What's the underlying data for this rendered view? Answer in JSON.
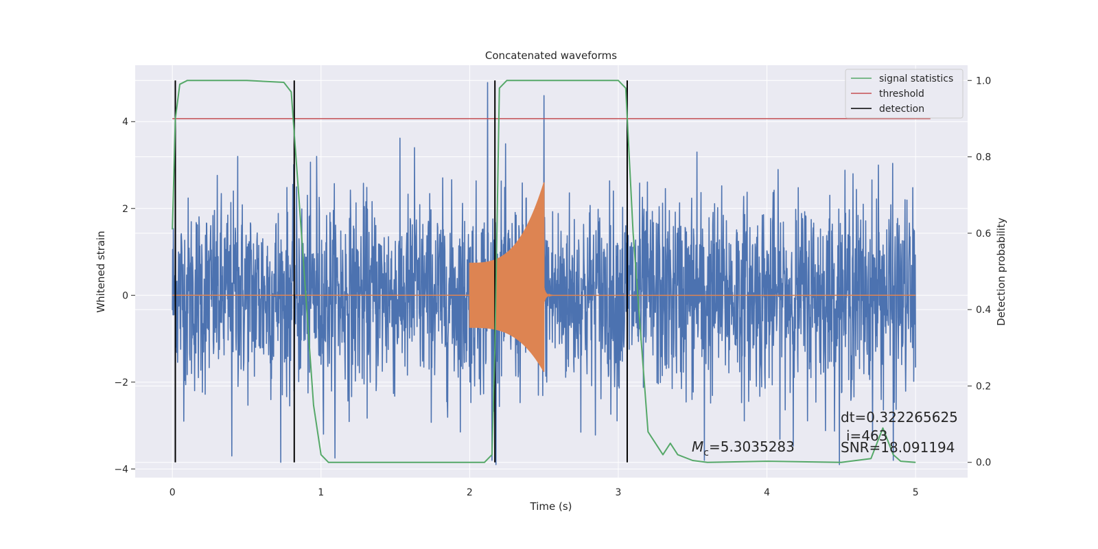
{
  "chart_data": {
    "type": "line",
    "title": "Concatenated waveforms",
    "xlabel": "Time (s)",
    "ylabel": "Whitened strain",
    "y2label": "Detection probability",
    "xlim": [
      -0.25,
      5.35
    ],
    "ylim": [
      -4.2,
      5.3
    ],
    "y2lim": [
      -0.04,
      1.04
    ],
    "xticks": [
      "0",
      "1",
      "2",
      "3",
      "4",
      "5"
    ],
    "yticks": [
      "−4",
      "−2",
      "0",
      "2",
      "4"
    ],
    "y2ticks": [
      "0.0",
      "0.2",
      "0.4",
      "0.6",
      "0.8",
      "1.0"
    ],
    "grid": true,
    "legend_position": "top-right",
    "legend": [
      {
        "label": "signal statistics",
        "color": "#55a868"
      },
      {
        "label": "threshold",
        "color": "#c44e52"
      },
      {
        "label": "detection",
        "color": "#000000"
      }
    ],
    "series": [
      {
        "name": "whitened strain",
        "color": "#4c72b0",
        "axis": "left",
        "x_range": [
          0,
          5
        ],
        "typical_amplitude": 1.3,
        "peaks": [
          [
            0.02,
            2.4
          ],
          [
            0.44,
            3.2
          ],
          [
            0.97,
            3.2
          ],
          [
            1.63,
            3.4
          ],
          [
            2.12,
            4.9
          ],
          [
            2.5,
            4.6
          ],
          [
            3.53,
            3.3
          ],
          [
            4.58,
            2.8
          ],
          [
            4.75,
            3.0
          ],
          [
            0.4,
            -3.7
          ],
          [
            2.15,
            -3.8
          ],
          [
            3.58,
            -3.8
          ],
          [
            4.85,
            -3.8
          ]
        ]
      },
      {
        "name": "waveform",
        "color": "#dd8452",
        "axis": "left",
        "x_range": [
          0,
          5
        ],
        "segment": {
          "start": 2.0,
          "end": 2.5,
          "amp_start": 0.75,
          "amp_end": 2.6
        }
      },
      {
        "name": "signal statistics",
        "color": "#55a868",
        "axis": "right",
        "x": [
          0.0,
          0.02,
          0.05,
          0.1,
          0.5,
          0.75,
          0.8,
          0.85,
          0.95,
          1.0,
          1.05,
          1.5,
          2.1,
          2.15,
          2.17,
          2.2,
          2.25,
          2.5,
          3.0,
          3.05,
          3.1,
          3.2,
          3.3,
          3.35,
          3.4,
          3.5,
          3.6,
          4.0,
          4.5,
          4.7,
          4.78,
          4.85,
          4.9,
          5.0
        ],
        "y": [
          0.61,
          0.9,
          0.99,
          1.0,
          1.0,
          0.995,
          0.97,
          0.7,
          0.15,
          0.02,
          0.0,
          0.0,
          0.0,
          0.02,
          0.3,
          0.98,
          1.0,
          1.0,
          1.0,
          0.98,
          0.6,
          0.08,
          0.02,
          0.05,
          0.02,
          0.005,
          0.0,
          0.003,
          0.0,
          0.01,
          0.09,
          0.02,
          0.003,
          0.0
        ]
      },
      {
        "name": "threshold",
        "color": "#c44e52",
        "axis": "right",
        "x": [
          0.0,
          5.1
        ],
        "y": [
          0.9,
          0.9
        ]
      }
    ],
    "detections": [
      0.02,
      0.82,
      2.17,
      3.06
    ],
    "annotations": {
      "mc": "=5.3035283",
      "dt": "dt=0.322265625",
      "i": "i=463",
      "snr": "SNR=18.091194"
    }
  }
}
